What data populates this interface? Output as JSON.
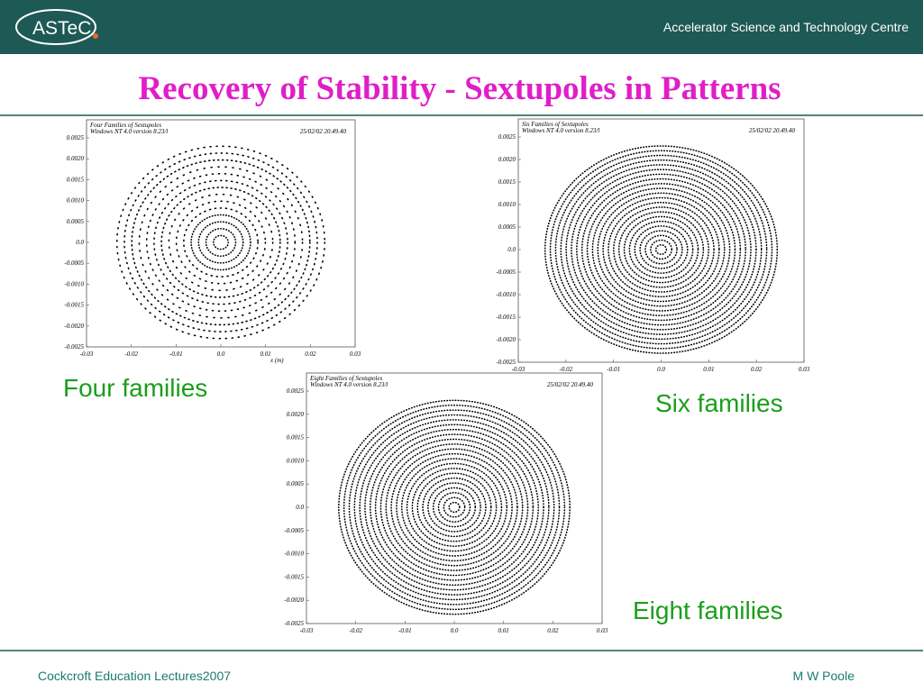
{
  "header": {
    "logo": "ASTeC",
    "organization": "Accelerator Science and Technology Centre"
  },
  "title": "Recovery of Stability - Sextupoles in Patterns",
  "plots": [
    {
      "title_lines": [
        "Four Families of Sextupoles",
        "Windows NT 4.0 version 8.23/l"
      ],
      "timestamp": "25/02/02  20.49.40",
      "yticks": [
        "0.0025",
        "0.0020",
        "0.0015",
        "0.0010",
        "0.0005",
        "0.0",
        "-0.0005",
        "-0.0010",
        "-0.0015",
        "-0.0020",
        "-0.0025"
      ],
      "xticks": [
        "-0.03",
        "-0.02",
        "-0.01",
        "0.0",
        "0.01",
        "0.02",
        "0.03"
      ],
      "x_label": "x (m)",
      "caption": "Four families"
    },
    {
      "title_lines": [
        "Six Families of Sextupoles",
        "Windows NT 4.0 version 8.23/l"
      ],
      "timestamp": "25/02/02  20.49.40",
      "yticks": [
        "0.0025",
        "0.0020",
        "0.0015",
        "0.0010",
        "0.0005",
        "0.0",
        "-0.0005",
        "-0.0010",
        "-0.0015",
        "-0.0020",
        "-0.0025"
      ],
      "xticks": [
        "-0.03",
        "-0.02",
        "-0.01",
        "0.0",
        "0.01",
        "0.02",
        "0.03"
      ],
      "caption": "Six families"
    },
    {
      "title_lines": [
        "Eight Families of Sextupoles",
        "Windows NT 4.0 version 8.23/l"
      ],
      "timestamp": "25/02/02  20.49.40",
      "yticks": [
        "0.0025",
        "0.0020",
        "0.0015",
        "0.0010",
        "0.0005",
        "0.0",
        "-0.0005",
        "-0.0010",
        "-0.0015",
        "-0.0020",
        "-0.0025"
      ],
      "xticks": [
        "-0.03",
        "-0.02",
        "-0.01",
        "0.0",
        "0.01",
        "0.02",
        "0.03"
      ],
      "caption": "Eight families"
    }
  ],
  "footer": {
    "left": "Cockcroft Education Lectures2007",
    "right": "M W Poole"
  }
}
